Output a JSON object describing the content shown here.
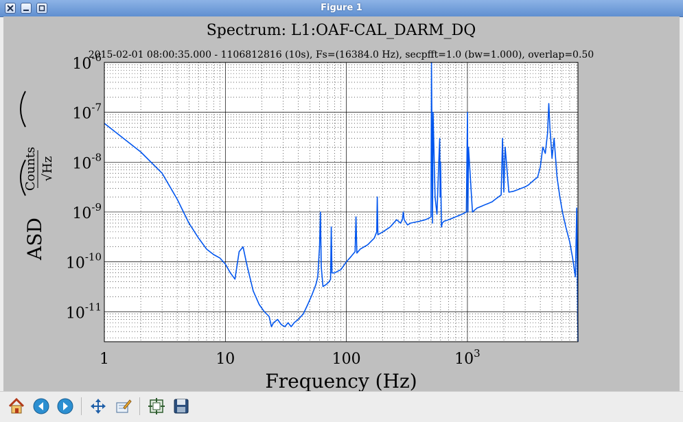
{
  "window": {
    "title": "Figure 1",
    "controls": [
      "close",
      "minimize",
      "maximize"
    ]
  },
  "toolbar": {
    "buttons": [
      {
        "name": "home-button",
        "icon": "home-icon"
      },
      {
        "name": "back-button",
        "icon": "arrow-left-icon"
      },
      {
        "name": "forward-button",
        "icon": "arrow-right-icon"
      },
      {
        "name": "pan-button",
        "icon": "move-icon"
      },
      {
        "name": "zoom-button",
        "icon": "edit-axes-icon"
      },
      {
        "name": "subplots-button",
        "icon": "configure-subplots-icon"
      },
      {
        "name": "save-button",
        "icon": "floppy-disk-icon"
      }
    ]
  },
  "chart_data": {
    "type": "line",
    "title": "Spectrum: L1:OAF-CAL_DARM_DQ",
    "subtitle": "2015-02-01 08:00:35.000 - 1106812816 (10s), Fs=(16384.0 Hz), secpfft=1.0 (bw=1.000), overlap=0.50",
    "xlabel": "Frequency (Hz)",
    "ylabel": "ASD",
    "ylabel_unit_numerator": "Counts",
    "ylabel_unit_denominator": "√Hz",
    "x_scale": "log",
    "y_scale": "log",
    "xlim": [
      1,
      8192
    ],
    "ylim": [
      2.5e-12,
      1e-06
    ],
    "x_ticks": [
      1,
      10,
      100,
      1000
    ],
    "x_tick_labels": [
      "1",
      "10",
      "100",
      "10^3"
    ],
    "y_ticks": [
      1e-11,
      1e-10,
      1e-09,
      1e-08,
      1e-07,
      1e-06
    ],
    "y_tick_labels": [
      "10^-11",
      "10^-10",
      "10^-9",
      "10^-8",
      "10^-7",
      "10^-6"
    ],
    "grid": true,
    "line_color": "#0055ee",
    "series": [
      {
        "x": [
          1,
          2,
          3,
          4,
          5,
          6,
          7,
          8,
          9,
          10,
          11,
          12,
          13,
          14,
          15,
          17,
          19,
          21,
          23,
          24,
          25,
          27,
          29,
          31,
          33,
          35,
          37,
          40,
          44,
          48,
          52,
          56,
          58,
          60,
          61,
          62,
          64,
          68,
          72,
          74,
          75,
          76,
          80,
          90,
          100,
          110,
          118,
          120,
          122,
          130,
          150,
          170,
          178,
          180,
          182,
          200,
          230,
          260,
          280,
          290,
          295,
          300,
          320,
          340,
          400,
          450,
          480,
          500,
          505,
          510,
          515,
          520,
          540,
          560,
          580,
          590,
          595,
          600,
          610,
          620,
          640,
          700,
          800,
          900,
          980,
          1000,
          1010,
          1020,
          1100,
          1200,
          1300,
          1400,
          1500,
          1600,
          1700,
          1800,
          1900,
          1950,
          2000,
          2050,
          2200,
          2400,
          2600,
          2800,
          3000,
          3200,
          3400,
          3600,
          3800,
          4000,
          4200,
          4400,
          4600,
          4700,
          4800,
          4900,
          5000,
          5200,
          5500,
          5800,
          6100,
          6500,
          7000,
          7400,
          7800,
          8000,
          8192
        ],
        "y": [
          6e-08,
          1.6e-08,
          6e-09,
          1.8e-09,
          6e-10,
          3e-10,
          1.8e-10,
          1.4e-10,
          1.2e-10,
          9e-11,
          6e-11,
          4.5e-11,
          1.6e-10,
          2e-10,
          9e-11,
          2.6e-11,
          1.4e-11,
          1e-11,
          8e-12,
          5e-12,
          6e-12,
          7e-12,
          5.5e-12,
          5e-12,
          6e-12,
          5e-12,
          6e-12,
          7e-12,
          9e-12,
          1.4e-11,
          2.2e-11,
          3.5e-11,
          5e-11,
          2e-10,
          1e-09,
          8e-11,
          3.2e-11,
          3.5e-11,
          4e-11,
          4.5e-11,
          5e-10,
          6e-11,
          6e-11,
          7e-11,
          1e-10,
          1.3e-10,
          1.6e-10,
          8e-10,
          1.5e-10,
          1.8e-10,
          2.2e-10,
          3e-10,
          4e-10,
          2e-09,
          3.5e-10,
          4e-10,
          5e-10,
          7e-10,
          6e-10,
          7e-10,
          1e-09,
          7e-10,
          5.5e-10,
          6e-10,
          6.5e-10,
          7e-10,
          7.5e-10,
          8e-10,
          1e-06,
          2e-08,
          6e-10,
          1e-07,
          2e-09,
          9e-10,
          1e-08,
          3e-08,
          2e-09,
          1e-08,
          5e-10,
          6e-10,
          6.5e-10,
          7e-10,
          8e-10,
          9e-10,
          1e-09,
          1e-07,
          1e-09,
          2e-08,
          1e-09,
          1.2e-09,
          1.3e-09,
          1.4e-09,
          1.5e-09,
          1.6e-09,
          1.8e-09,
          2e-09,
          2.2e-09,
          3e-08,
          2.5e-09,
          2e-08,
          2.5e-09,
          2.6e-09,
          2.8e-09,
          3e-09,
          3.2e-09,
          3.5e-09,
          4e-09,
          4.5e-09,
          5e-09,
          8e-09,
          2e-08,
          1.5e-08,
          4e-08,
          1.5e-07,
          5e-08,
          2.5e-08,
          1.2e-08,
          3e-08,
          5e-09,
          2e-09,
          1e-09,
          5e-10,
          2.5e-10,
          1.2e-10,
          5e-11,
          1.2e-09,
          2.5e-12
        ]
      }
    ]
  }
}
